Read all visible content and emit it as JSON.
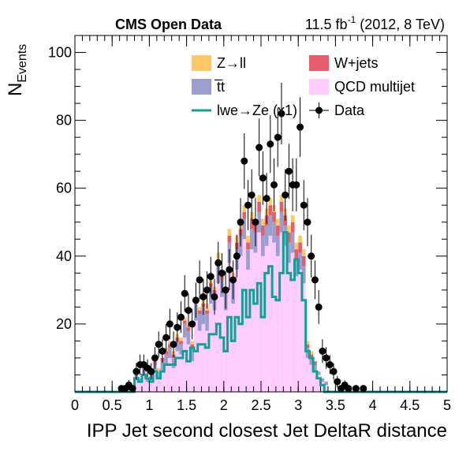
{
  "header": {
    "experiment": "CMS Open Data",
    "lumi_value": "11.5 fb",
    "lumi_exp": "-1",
    "conditions": " (2012, 8 TeV)"
  },
  "colors": {
    "zll": "#fdc966",
    "wjets": "#e35d6a",
    "ttbar": "#9d9ed0",
    "qcd": "#ffccff",
    "signal": "#10a195",
    "data": "#000000"
  },
  "chart_data": {
    "type": "bar",
    "subtype": "stacked-histogram",
    "xlabel": "IPP Jet second closest Jet DeltaR distance",
    "ylabel": "N",
    "ylabel_sub": "Events",
    "xlim": [
      0,
      5
    ],
    "ylim": [
      0,
      105
    ],
    "x_ticks": [
      "0",
      "0.5",
      "1",
      "1.5",
      "2",
      "2.5",
      "3",
      "3.5",
      "4",
      "4.5",
      "5"
    ],
    "y_ticks": [
      "20",
      "40",
      "60",
      "80",
      "100"
    ],
    "bin_width": 0.05,
    "bin_starts": [
      0.8,
      0.85,
      0.9,
      0.95,
      1.0,
      1.05,
      1.1,
      1.15,
      1.2,
      1.25,
      1.3,
      1.35,
      1.4,
      1.45,
      1.5,
      1.55,
      1.6,
      1.65,
      1.7,
      1.75,
      1.8,
      1.85,
      1.9,
      1.95,
      2.0,
      2.05,
      2.1,
      2.15,
      2.2,
      2.25,
      2.3,
      2.35,
      2.4,
      2.45,
      2.5,
      2.55,
      2.6,
      2.65,
      2.7,
      2.75,
      2.8,
      2.85,
      2.9,
      2.95,
      3.0,
      3.05,
      3.1,
      3.15,
      3.2,
      3.25,
      3.3,
      3.35
    ],
    "legend": [
      {
        "key": "zll",
        "label": "Z→ll",
        "kind": "box"
      },
      {
        "key": "wjets",
        "label": "W+jets",
        "kind": "box"
      },
      {
        "key": "ttbar",
        "label": "t̅t",
        "kind": "box"
      },
      {
        "key": "qcd",
        "label": "QCD multijet",
        "kind": "box"
      },
      {
        "key": "signal",
        "label": "lwe→Ze (x1)",
        "kind": "line"
      },
      {
        "key": "data",
        "label": "Data",
        "kind": "marker"
      }
    ],
    "series": [
      {
        "key": "qcd",
        "values": [
          4,
          3,
          5,
          3,
          4,
          6,
          4,
          6,
          8,
          10,
          7,
          12,
          11,
          16,
          14,
          9,
          21,
          18,
          20,
          18,
          26,
          24,
          32,
          28,
          24,
          38,
          26,
          36,
          40,
          45,
          36,
          42,
          41,
          47,
          40,
          43,
          46,
          44,
          40,
          47,
          43,
          38,
          41,
          34,
          36,
          32,
          10,
          8,
          6,
          5,
          3,
          2
        ]
      },
      {
        "key": "ttbar",
        "values": [
          1,
          1,
          2,
          1,
          2,
          2,
          2,
          3,
          3,
          3,
          3,
          3,
          3,
          4,
          4,
          4,
          5,
          5,
          5,
          5,
          5,
          5,
          5,
          5,
          5,
          6,
          6,
          6,
          6,
          6,
          6,
          6,
          6,
          6,
          6,
          6,
          6,
          6,
          6,
          6,
          6,
          6,
          6,
          5,
          5,
          5,
          3,
          2,
          2,
          1,
          1,
          1
        ]
      },
      {
        "key": "wjets",
        "values": [
          0,
          0,
          0,
          0,
          0,
          1,
          0,
          1,
          1,
          1,
          1,
          1,
          1,
          1,
          1,
          1,
          1,
          1,
          1,
          1,
          1,
          1,
          2,
          1,
          1,
          2,
          1,
          2,
          2,
          2,
          2,
          3,
          2,
          3,
          3,
          3,
          3,
          3,
          3,
          3,
          3,
          3,
          3,
          3,
          3,
          3,
          1,
          1,
          1,
          0,
          0,
          0
        ]
      },
      {
        "key": "zll",
        "values": [
          0,
          0,
          0,
          0,
          1,
          0,
          1,
          0,
          1,
          1,
          1,
          1,
          1,
          1,
          1,
          1,
          1,
          1,
          1,
          2,
          1,
          1,
          2,
          2,
          1,
          2,
          2,
          2,
          2,
          2,
          2,
          2,
          2,
          2,
          2,
          2,
          2,
          2,
          2,
          2,
          2,
          2,
          2,
          2,
          2,
          2,
          1,
          1,
          0,
          0,
          0,
          0
        ]
      }
    ],
    "signal": {
      "edges": [
        0,
        0.8,
        0.85,
        0.9,
        0.95,
        1.0,
        1.05,
        1.1,
        1.15,
        1.2,
        1.25,
        1.3,
        1.35,
        1.4,
        1.45,
        1.5,
        1.55,
        1.6,
        1.65,
        1.7,
        1.75,
        1.8,
        1.85,
        1.9,
        1.95,
        2.0,
        2.05,
        2.1,
        2.15,
        2.2,
        2.25,
        2.3,
        2.35,
        2.4,
        2.45,
        2.5,
        2.55,
        2.6,
        2.65,
        2.7,
        2.75,
        2.8,
        2.85,
        2.9,
        2.95,
        3.0,
        3.05,
        3.1,
        3.15,
        3.2,
        3.25,
        3.3,
        3.35,
        5.0
      ],
      "values": [
        0,
        4,
        3,
        5,
        4,
        3,
        6,
        4,
        6,
        8,
        8,
        8,
        10,
        10,
        12,
        9,
        13,
        12,
        14,
        14,
        13,
        17,
        17,
        20,
        16,
        12,
        22,
        15,
        22,
        20,
        30,
        22,
        30,
        26,
        32,
        22,
        35,
        37,
        28,
        27,
        35,
        47,
        35,
        33,
        39,
        35,
        27,
        12,
        10,
        6,
        4,
        2,
        0
      ]
    },
    "data_points": [
      {
        "x": 0.625,
        "y": 1,
        "e": 1
      },
      {
        "x": 0.675,
        "y": 1,
        "e": 1
      },
      {
        "x": 0.725,
        "y": 2,
        "e": 1.5
      },
      {
        "x": 0.775,
        "y": 1,
        "e": 1
      },
      {
        "x": 0.825,
        "y": 6,
        "e": 2.5
      },
      {
        "x": 0.875,
        "y": 8,
        "e": 3
      },
      {
        "x": 0.925,
        "y": 8,
        "e": 3
      },
      {
        "x": 0.975,
        "y": 7,
        "e": 2.6
      },
      {
        "x": 1.025,
        "y": 6,
        "e": 2.5
      },
      {
        "x": 1.075,
        "y": 10,
        "e": 3.2
      },
      {
        "x": 1.125,
        "y": 14,
        "e": 3.8
      },
      {
        "x": 1.175,
        "y": 12,
        "e": 3.5
      },
      {
        "x": 1.225,
        "y": 16,
        "e": 4
      },
      {
        "x": 1.275,
        "y": 20,
        "e": 4.5
      },
      {
        "x": 1.325,
        "y": 14,
        "e": 3.8
      },
      {
        "x": 1.375,
        "y": 19,
        "e": 4.4
      },
      {
        "x": 1.425,
        "y": 22,
        "e": 4.7
      },
      {
        "x": 1.475,
        "y": 29,
        "e": 5.4
      },
      {
        "x": 1.525,
        "y": 24,
        "e": 4.9
      },
      {
        "x": 1.575,
        "y": 20,
        "e": 4.5
      },
      {
        "x": 1.625,
        "y": 27,
        "e": 5.2
      },
      {
        "x": 1.675,
        "y": 33,
        "e": 5.7
      },
      {
        "x": 1.725,
        "y": 28,
        "e": 5.3
      },
      {
        "x": 1.775,
        "y": 30,
        "e": 5.5
      },
      {
        "x": 1.825,
        "y": 34,
        "e": 5.8
      },
      {
        "x": 1.875,
        "y": 28,
        "e": 5.3
      },
      {
        "x": 1.925,
        "y": 38,
        "e": 6.2
      },
      {
        "x": 1.975,
        "y": 35,
        "e": 5.9
      },
      {
        "x": 2.025,
        "y": 30,
        "e": 5.5
      },
      {
        "x": 2.075,
        "y": 36,
        "e": 6
      },
      {
        "x": 2.125,
        "y": 33,
        "e": 5.7
      },
      {
        "x": 2.175,
        "y": 40,
        "e": 6.3
      },
      {
        "x": 2.225,
        "y": 50,
        "e": 7.1
      },
      {
        "x": 2.275,
        "y": 68,
        "e": 8.2
      },
      {
        "x": 2.325,
        "y": 55,
        "e": 7.4
      },
      {
        "x": 2.375,
        "y": 58,
        "e": 7.6
      },
      {
        "x": 2.425,
        "y": 50,
        "e": 7.1
      },
      {
        "x": 2.475,
        "y": 72,
        "e": 8.5
      },
      {
        "x": 2.525,
        "y": 63,
        "e": 7.9
      },
      {
        "x": 2.575,
        "y": 57,
        "e": 7.5
      },
      {
        "x": 2.625,
        "y": 73,
        "e": 8.5
      },
      {
        "x": 2.675,
        "y": 61,
        "e": 7.8
      },
      {
        "x": 2.725,
        "y": 75,
        "e": 8.7
      },
      {
        "x": 2.775,
        "y": 82,
        "e": 9.1
      },
      {
        "x": 2.825,
        "y": 58,
        "e": 7.6
      },
      {
        "x": 2.875,
        "y": 65,
        "e": 8.1
      },
      {
        "x": 2.925,
        "y": 61,
        "e": 7.8
      },
      {
        "x": 2.975,
        "y": 61,
        "e": 7.8
      },
      {
        "x": 3.025,
        "y": 78,
        "e": 8.8
      },
      {
        "x": 3.075,
        "y": 55,
        "e": 7.4
      },
      {
        "x": 3.125,
        "y": 50,
        "e": 7.1
      },
      {
        "x": 3.175,
        "y": 40,
        "e": 6.3
      },
      {
        "x": 3.225,
        "y": 33,
        "e": 5.7
      },
      {
        "x": 3.275,
        "y": 25,
        "e": 5
      },
      {
        "x": 3.325,
        "y": 12,
        "e": 3.5
      },
      {
        "x": 3.375,
        "y": 10,
        "e": 3.2
      },
      {
        "x": 3.425,
        "y": 8,
        "e": 2.8
      },
      {
        "x": 3.475,
        "y": 6,
        "e": 2.4
      },
      {
        "x": 3.525,
        "y": 3,
        "e": 1.7
      },
      {
        "x": 3.575,
        "y": 1,
        "e": 1
      },
      {
        "x": 3.625,
        "y": 2,
        "e": 1.4
      },
      {
        "x": 3.675,
        "y": 1,
        "e": 1
      },
      {
        "x": 3.775,
        "y": 1,
        "e": 1
      },
      {
        "x": 3.875,
        "y": 1,
        "e": 1
      }
    ]
  }
}
